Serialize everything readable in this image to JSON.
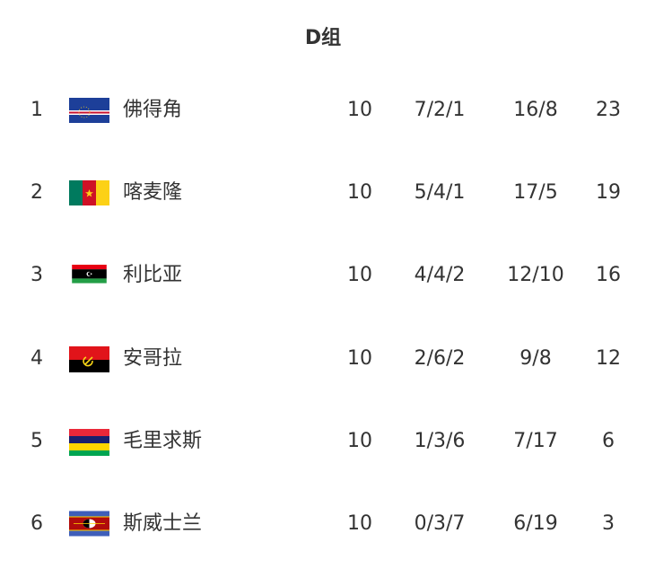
{
  "title": "D组",
  "rows": [
    {
      "rank": "1",
      "flag": "cape-verde-flag",
      "name": "佛得角",
      "played": "10",
      "wdl": "7/2/1",
      "goals": "16/8",
      "pts": "23"
    },
    {
      "rank": "2",
      "flag": "cameroon-flag",
      "name": "喀麦隆",
      "played": "10",
      "wdl": "5/4/1",
      "goals": "17/5",
      "pts": "19"
    },
    {
      "rank": "3",
      "flag": "libya-flag",
      "name": "利比亚",
      "played": "10",
      "wdl": "4/4/2",
      "goals": "12/10",
      "pts": "16"
    },
    {
      "rank": "4",
      "flag": "angola-flag",
      "name": "安哥拉",
      "played": "10",
      "wdl": "2/6/2",
      "goals": "9/8",
      "pts": "12"
    },
    {
      "rank": "5",
      "flag": "mauritius-flag",
      "name": "毛里求斯",
      "played": "10",
      "wdl": "1/3/6",
      "goals": "7/17",
      "pts": "6"
    },
    {
      "rank": "6",
      "flag": "eswatini-flag",
      "name": "斯威士兰",
      "played": "10",
      "wdl": "0/3/7",
      "goals": "6/19",
      "pts": "3"
    }
  ]
}
